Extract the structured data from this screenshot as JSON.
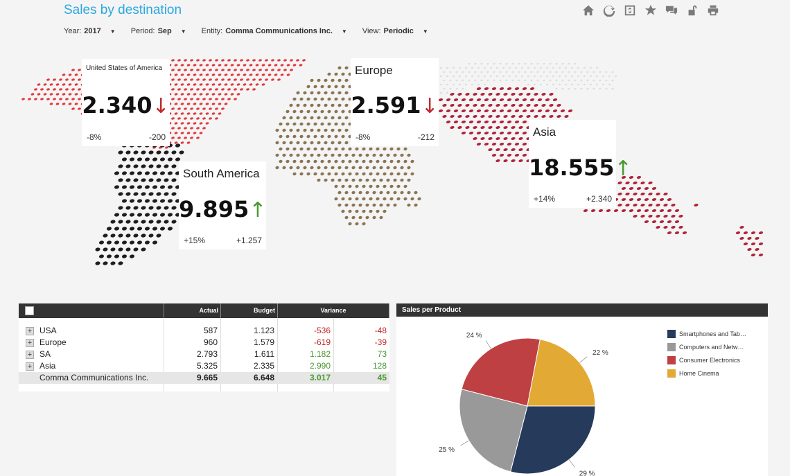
{
  "title": "Sales by destination",
  "toolbar": [
    "home-icon",
    "refresh-icon",
    "scenario-icon",
    "star-icon",
    "comments-icon",
    "unlock-icon",
    "print-icon"
  ],
  "filters": [
    {
      "label": "Year:",
      "value": "2017"
    },
    {
      "label": "Period:",
      "value": "Sep"
    },
    {
      "label": "Entity:",
      "value": "Comma Communications Inc."
    },
    {
      "label": "View:",
      "value": "Periodic"
    }
  ],
  "kpis": {
    "usa": {
      "name": "United States of America",
      "value": "2.340",
      "trend": "down",
      "pct": "-8%",
      "delta": "-200"
    },
    "europe": {
      "name": "Europe",
      "value": "2.591",
      "trend": "down",
      "pct": "-8%",
      "delta": "-212"
    },
    "asia": {
      "name": "Asia",
      "value": "18.555",
      "trend": "up",
      "pct": "+14%",
      "delta": "+2.340"
    },
    "sa": {
      "name": "South America",
      "value": "9.895",
      "trend": "up",
      "pct": "+15%",
      "delta": "+1.257"
    }
  },
  "table": {
    "headers": {
      "actual": "Actual",
      "budget": "Budget",
      "variance": "Variance"
    },
    "rows": [
      {
        "name": "USA",
        "actual": "587",
        "budget": "1.123",
        "var": "-536",
        "var_pct": "-48"
      },
      {
        "name": "Europe",
        "actual": "960",
        "budget": "1.579",
        "var": "-619",
        "var_pct": "-39"
      },
      {
        "name": "SA",
        "actual": "2.793",
        "budget": "1.611",
        "var": "1.182",
        "var_pct": "73"
      },
      {
        "name": "Asia",
        "actual": "5.325",
        "budget": "2.335",
        "var": "2.990",
        "var_pct": "128"
      }
    ],
    "total": {
      "name": "Comma Communications Inc.",
      "actual": "9.665",
      "budget": "6.648",
      "var": "3.017",
      "var_pct": "45"
    }
  },
  "chart_title": "Sales per Product",
  "chart_data": {
    "type": "pie",
    "title": "Sales per Product",
    "labels": [
      "Smartphones and Tab…",
      "Computers and Netw…",
      "Consumer Electronics",
      "Home Cinema"
    ],
    "values": [
      29,
      25,
      24,
      22
    ],
    "value_labels": [
      "29 %",
      "25 %",
      "24 %",
      "22 %"
    ],
    "colors": [
      "#263a5c",
      "#999999",
      "#bf4042",
      "#e3a935"
    ],
    "legend": "right"
  },
  "colors": {
    "accent": "#29a8e0",
    "negative": "#c0282d",
    "positive": "#4a9a2f"
  }
}
